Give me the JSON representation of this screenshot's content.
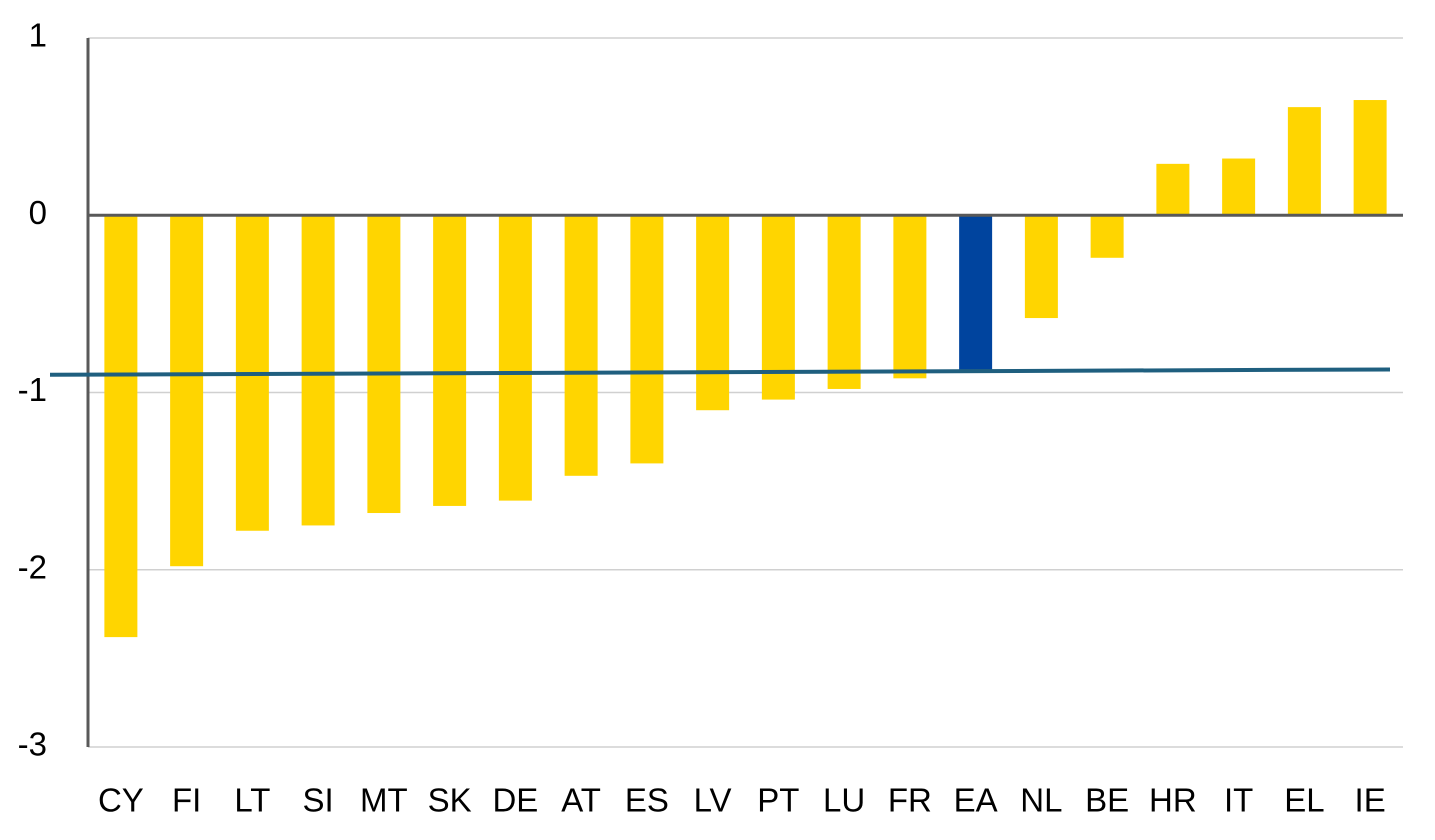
{
  "chart_data": {
    "type": "bar",
    "categories": [
      "CY",
      "FI",
      "LT",
      "SI",
      "MT",
      "SK",
      "DE",
      "AT",
      "ES",
      "LV",
      "PT",
      "LU",
      "FR",
      "EA",
      "NL",
      "BE",
      "HR",
      "IT",
      "EL",
      "IE"
    ],
    "values": [
      -2.38,
      -1.98,
      -1.78,
      -1.75,
      -1.68,
      -1.64,
      -1.61,
      -1.47,
      -1.4,
      -1.1,
      -1.04,
      -0.98,
      -0.92,
      -0.87,
      -0.58,
      -0.24,
      0.29,
      0.32,
      0.61,
      0.65
    ],
    "color": "#FFD500",
    "highlight": {
      "category": "EA",
      "color": "#00449E"
    },
    "reference_line": {
      "values": [
        -0.9,
        -0.87
      ],
      "color": "#1F5F7F"
    },
    "ylim": [
      -3,
      1
    ],
    "yticks": [
      1,
      0,
      -1,
      -2,
      -3
    ],
    "grid": true
  }
}
